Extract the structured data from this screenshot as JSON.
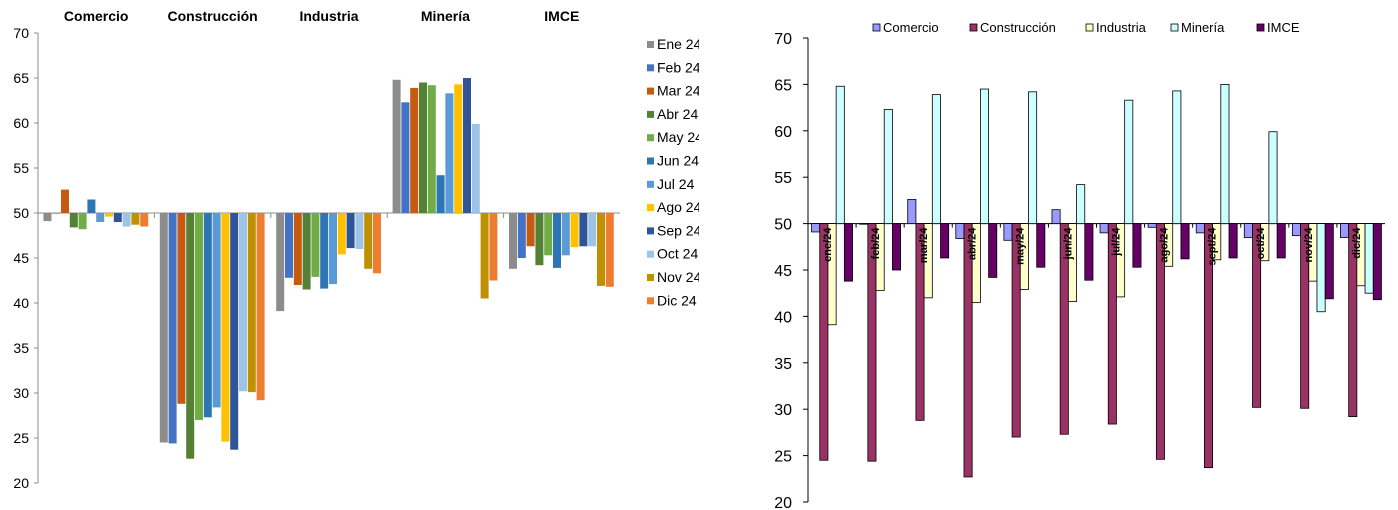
{
  "chart_data": [
    {
      "type": "bar",
      "categories": [
        "Comercio",
        "Construcción",
        "Industria",
        "Minería",
        "IMCE"
      ],
      "ylim": [
        20,
        70
      ],
      "baseline": 50,
      "yticks": [
        "70",
        "65",
        "60",
        "55",
        "50",
        "45",
        "40",
        "35",
        "30",
        "25",
        "20"
      ],
      "legend_position": "right",
      "series": [
        {
          "name": "Ene 24",
          "color": "#8c8c8c",
          "values": [
            49.1,
            24.5,
            39.1,
            64.8,
            43.8
          ]
        },
        {
          "name": "Feb 24",
          "color": "#4472c4",
          "values": [
            50.0,
            24.4,
            42.8,
            62.3,
            45.0
          ]
        },
        {
          "name": "Mar 24",
          "color": "#c55a11",
          "values": [
            52.6,
            28.8,
            42.0,
            63.9,
            46.3
          ]
        },
        {
          "name": "Abr 24",
          "color": "#548235",
          "values": [
            48.4,
            22.7,
            41.5,
            64.5,
            44.2
          ]
        },
        {
          "name": "May 24",
          "color": "#70ad47",
          "values": [
            48.2,
            27.0,
            42.9,
            64.2,
            45.3
          ]
        },
        {
          "name": "Jun 24",
          "color": "#2e75b6",
          "values": [
            51.5,
            27.3,
            41.6,
            54.2,
            43.9
          ]
        },
        {
          "name": "Jul 24",
          "color": "#5b9bd5",
          "values": [
            49.0,
            28.4,
            42.1,
            63.3,
            45.3
          ]
        },
        {
          "name": "Ago 24",
          "color": "#ffc000",
          "values": [
            49.6,
            24.6,
            45.4,
            64.3,
            46.2
          ]
        },
        {
          "name": "Sep 24",
          "color": "#2f5597",
          "values": [
            49.0,
            23.7,
            46.1,
            65.0,
            46.3
          ]
        },
        {
          "name": "Oct 24",
          "color": "#9dc3e6",
          "values": [
            48.5,
            30.2,
            46.0,
            59.9,
            46.3
          ]
        },
        {
          "name": "Nov 24",
          "color": "#bf9000",
          "values": [
            48.7,
            30.1,
            43.8,
            40.5,
            41.9
          ]
        },
        {
          "name": "Dic 24",
          "color": "#ed7d31",
          "values": [
            48.5,
            29.2,
            43.3,
            42.5,
            41.8
          ]
        }
      ]
    },
    {
      "type": "bar",
      "categories": [
        "ene/24",
        "feb/24",
        "mar/24",
        "abr/24",
        "may/24",
        "jun/24",
        "jul/24",
        "ago/24",
        "sept/24",
        "oct/24",
        "nov/24",
        "dic/24"
      ],
      "ylim": [
        20,
        70
      ],
      "baseline": 50,
      "yticks": [
        "70",
        "65",
        "60",
        "55",
        "50",
        "45",
        "40",
        "35",
        "30",
        "25",
        "20"
      ],
      "legend_position": "top",
      "series": [
        {
          "name": "Comercio",
          "color": "#9999ff",
          "values": [
            49.1,
            50.0,
            52.6,
            48.4,
            48.2,
            51.5,
            49.0,
            49.6,
            49.0,
            48.5,
            48.7,
            48.5
          ]
        },
        {
          "name": "Construcción",
          "color": "#993366",
          "values": [
            24.5,
            24.4,
            28.8,
            22.7,
            27.0,
            27.3,
            28.4,
            24.6,
            23.7,
            30.2,
            30.1,
            29.2
          ]
        },
        {
          "name": "Industria",
          "color": "#ffffcc",
          "values": [
            39.1,
            42.8,
            42.0,
            41.5,
            42.9,
            41.6,
            42.1,
            45.4,
            46.1,
            46.0,
            43.8,
            43.3
          ]
        },
        {
          "name": "Minería",
          "color": "#ccffff",
          "values": [
            64.8,
            62.3,
            63.9,
            64.5,
            64.2,
            54.2,
            63.3,
            64.3,
            65.0,
            59.9,
            40.5,
            42.5
          ]
        },
        {
          "name": "IMCE",
          "color": "#660066",
          "values": [
            43.8,
            45.0,
            46.3,
            44.2,
            45.3,
            43.9,
            45.3,
            46.2,
            46.3,
            46.3,
            41.9,
            41.8
          ]
        }
      ]
    }
  ]
}
